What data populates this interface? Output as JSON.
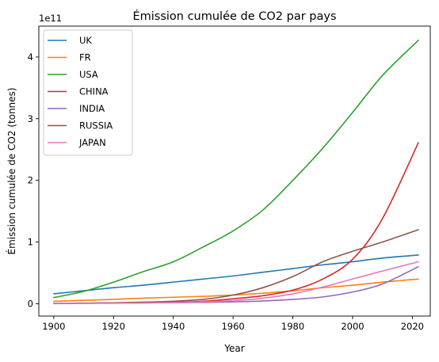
{
  "chart_data": {
    "type": "line",
    "title": "Émission cumulée de CO2 par pays",
    "xlabel": "Year",
    "ylabel": "Émission cumulée de CO2 (tonnes)",
    "y_offset_label": "1e11",
    "y_scale": 100000000000,
    "xlim": [
      1895,
      2026
    ],
    "ylim": [
      -0.2,
      4.5
    ],
    "x_ticks": [
      1900,
      1920,
      1940,
      1960,
      1980,
      2000,
      2020
    ],
    "y_ticks": [
      0,
      1,
      2,
      3,
      4
    ],
    "legend_position": "top-left",
    "x": [
      1900,
      1910,
      1920,
      1930,
      1940,
      1950,
      1960,
      1970,
      1980,
      1990,
      2000,
      2010,
      2022
    ],
    "series": [
      {
        "name": "UK",
        "color": "#1f77b4",
        "values": [
          0.16,
          0.21,
          0.26,
          0.3,
          0.35,
          0.4,
          0.45,
          0.51,
          0.57,
          0.63,
          0.68,
          0.74,
          0.79
        ]
      },
      {
        "name": "FR",
        "color": "#ff7f0e",
        "values": [
          0.04,
          0.055,
          0.07,
          0.09,
          0.105,
          0.12,
          0.14,
          0.17,
          0.21,
          0.26,
          0.3,
          0.35,
          0.4
        ]
      },
      {
        "name": "USA",
        "color": "#2ca02c",
        "values": [
          0.1,
          0.2,
          0.35,
          0.52,
          0.68,
          0.92,
          1.18,
          1.52,
          2.0,
          2.52,
          3.1,
          3.7,
          4.27
        ]
      },
      {
        "name": "CHINA",
        "color": "#d62728",
        "values": [
          0.005,
          0.008,
          0.01,
          0.015,
          0.025,
          0.04,
          0.08,
          0.13,
          0.22,
          0.4,
          0.72,
          1.38,
          2.61
        ]
      },
      {
        "name": "INDIA",
        "color": "#9467bd",
        "values": [
          0.005,
          0.007,
          0.01,
          0.013,
          0.017,
          0.022,
          0.03,
          0.045,
          0.07,
          0.11,
          0.19,
          0.32,
          0.6
        ]
      },
      {
        "name": "RUSSIA",
        "color": "#8c564b",
        "values": [
          0.005,
          0.01,
          0.015,
          0.025,
          0.04,
          0.07,
          0.14,
          0.26,
          0.44,
          0.68,
          0.85,
          1.0,
          1.2
        ]
      },
      {
        "name": "JAPAN",
        "color": "#e377c2",
        "values": [
          0.002,
          0.004,
          0.007,
          0.012,
          0.02,
          0.03,
          0.05,
          0.09,
          0.16,
          0.27,
          0.4,
          0.53,
          0.68
        ]
      }
    ]
  }
}
